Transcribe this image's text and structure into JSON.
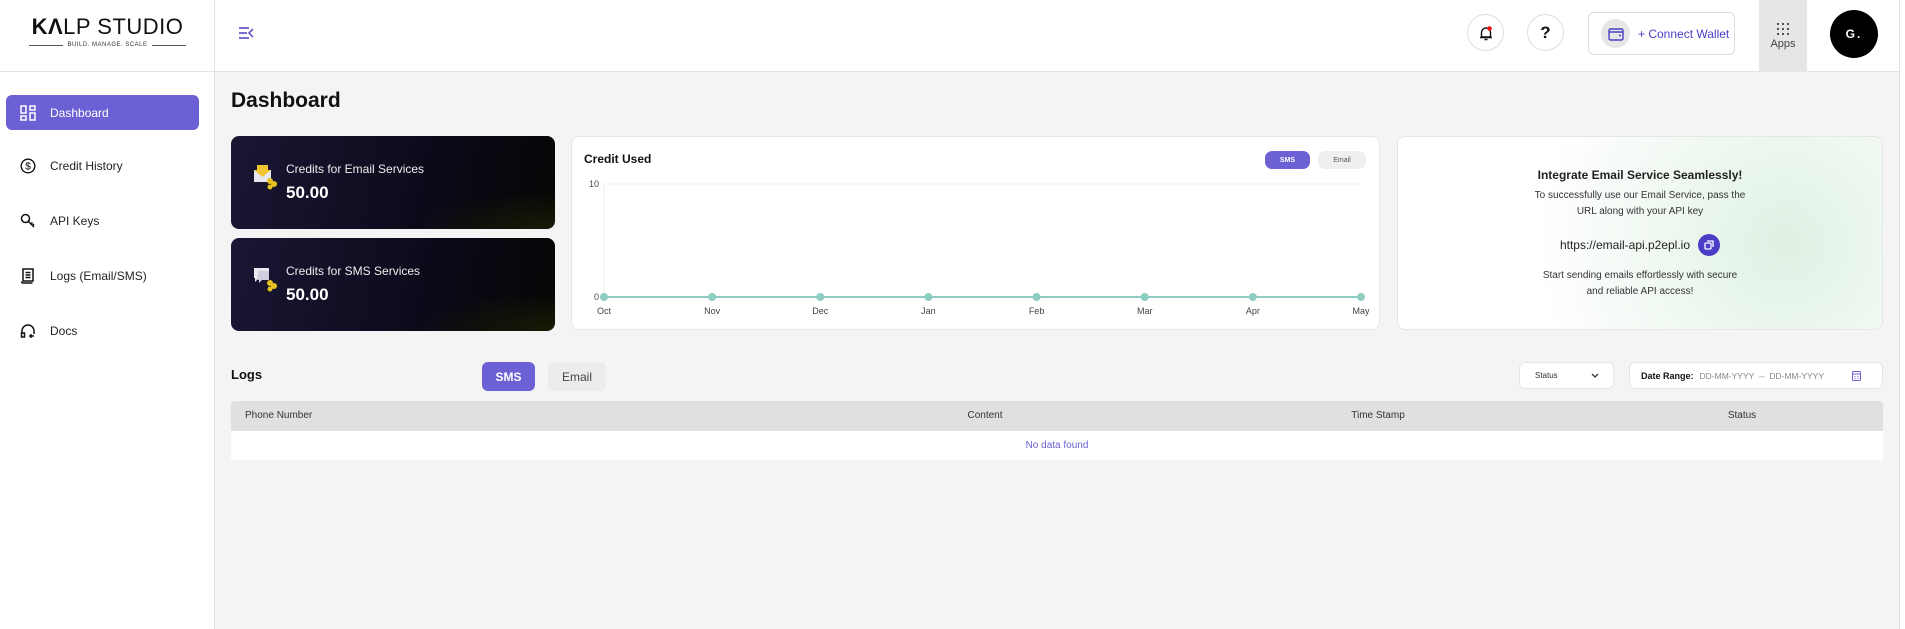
{
  "brand": {
    "name_bold": "K",
    "name_mark": "Λ",
    "name_rest": "LP STUDIO",
    "tagline": "BUILD. MANAGE. SCALE"
  },
  "sidebar": {
    "items": [
      {
        "label": "Dashboard",
        "icon": "dashboard-grid-icon",
        "active": true
      },
      {
        "label": "Credit History",
        "icon": "dollar-circle-icon"
      },
      {
        "label": "API Keys",
        "icon": "key-icon"
      },
      {
        "label": "Logs (Email/SMS)",
        "icon": "receipt-icon"
      },
      {
        "label": "Docs",
        "icon": "headset-icon"
      }
    ]
  },
  "header": {
    "connect_wallet": "+ Connect Wallet",
    "apps": "Apps",
    "avatar": "G.",
    "help": "?"
  },
  "page": {
    "title": "Dashboard"
  },
  "credits": [
    {
      "label": "Credits for Email Services",
      "value": "50.00"
    },
    {
      "label": "Credits for SMS Services",
      "value": "50.00"
    }
  ],
  "chart_data": {
    "type": "line",
    "title": "Credit Used",
    "toggle": [
      "SMS",
      "Email"
    ],
    "active_toggle": "SMS",
    "categories": [
      "Oct",
      "Nov",
      "Dec",
      "Jan",
      "Feb",
      "Mar",
      "Apr",
      "May"
    ],
    "values": [
      0,
      0,
      0,
      0,
      0,
      0,
      0,
      0
    ],
    "ylim": [
      0,
      10
    ],
    "yticks": [
      "0",
      "10"
    ],
    "color": "#8ecdc0"
  },
  "integrate": {
    "title": "Integrate Email Service Seamlessly!",
    "line1": "To successfully use our Email Service, pass the",
    "line2": "URL along with your API key",
    "url": "https://email-api.p2epl.io",
    "line3": "Start sending emails effortlessly with secure",
    "line4": "and reliable API access!"
  },
  "logs": {
    "title": "Logs",
    "tabs": [
      "SMS",
      "Email"
    ],
    "active_tab": "SMS",
    "status_select": "Status",
    "date_label": "Date Range:",
    "date_placeholder": "DD-MM-YYYY  --  DD-MM-YYYY",
    "columns": [
      "Phone Number",
      "Content",
      "Time Stamp",
      "Status"
    ],
    "empty": "No data found"
  },
  "colors": {
    "accent": "#6b61d4",
    "wallet": "#4a3fc6"
  }
}
